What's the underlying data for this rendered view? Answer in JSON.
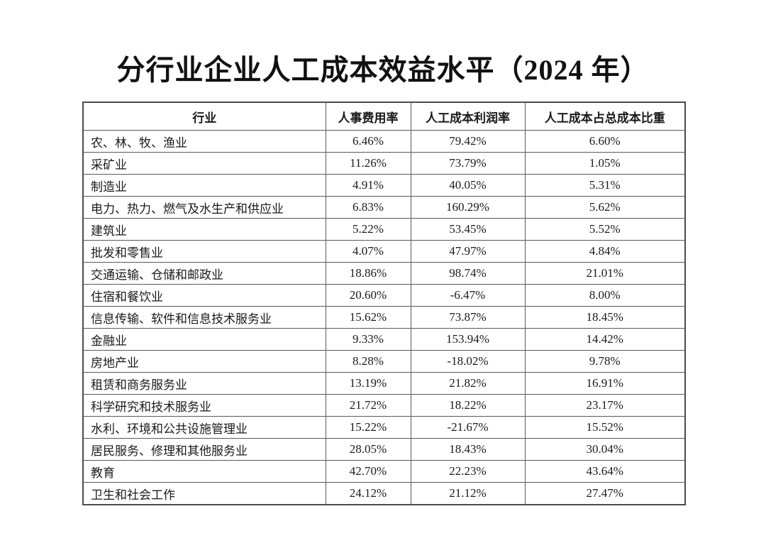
{
  "title": "分行业企业人工成本效益水平（2024 年）",
  "colors": {
    "background": "#ffffff",
    "border_outer": "#4c4c4c",
    "border_inner": "#595959",
    "text": "#1a1a1a"
  },
  "chart_data": {
    "type": "table",
    "title": "分行业企业人工成本效益水平（2024 年）",
    "columns": [
      "行业",
      "人事费用率",
      "人工成本利润率",
      "人工成本占总成本比重"
    ],
    "rows": [
      [
        "农、林、牧、渔业",
        "6.46%",
        "79.42%",
        "6.60%"
      ],
      [
        "采矿业",
        "11.26%",
        "73.79%",
        "1.05%"
      ],
      [
        "制造业",
        "4.91%",
        "40.05%",
        "5.31%"
      ],
      [
        "电力、热力、燃气及水生产和供应业",
        "6.83%",
        "160.29%",
        "5.62%"
      ],
      [
        "建筑业",
        "5.22%",
        "53.45%",
        "5.52%"
      ],
      [
        "批发和零售业",
        "4.07%",
        "47.97%",
        "4.84%"
      ],
      [
        "交通运输、仓储和邮政业",
        "18.86%",
        "98.74%",
        "21.01%"
      ],
      [
        "住宿和餐饮业",
        "20.60%",
        "-6.47%",
        "8.00%"
      ],
      [
        "信息传输、软件和信息技术服务业",
        "15.62%",
        "73.87%",
        "18.45%"
      ],
      [
        "金融业",
        "9.33%",
        "153.94%",
        "14.42%"
      ],
      [
        "房地产业",
        "8.28%",
        "-18.02%",
        "9.78%"
      ],
      [
        "租赁和商务服务业",
        "13.19%",
        "21.82%",
        "16.91%"
      ],
      [
        "科学研究和技术服务业",
        "21.72%",
        "18.22%",
        "23.17%"
      ],
      [
        "水利、环境和公共设施管理业",
        "15.22%",
        "-21.67%",
        "15.52%"
      ],
      [
        "居民服务、修理和其他服务业",
        "28.05%",
        "18.43%",
        "30.04%"
      ],
      [
        "教育",
        "42.70%",
        "22.23%",
        "43.64%"
      ],
      [
        "卫生和社会工作",
        "24.12%",
        "21.12%",
        "27.47%"
      ]
    ]
  }
}
